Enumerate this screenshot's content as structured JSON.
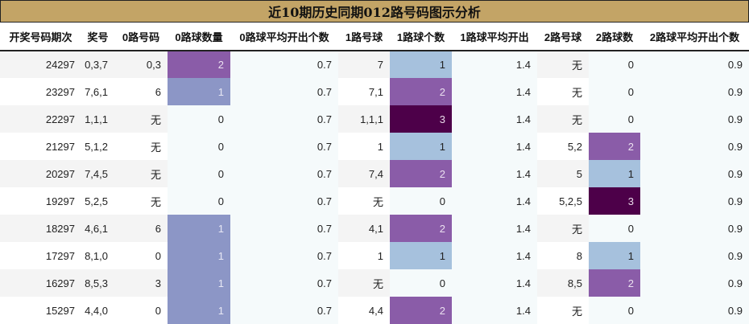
{
  "title": "近10期历史同期012路号码图示分析",
  "columns": [
    "开奖号码期次",
    "奖号",
    "0路号码",
    "0路球数量",
    "0路球平均开出个数",
    "1路号球",
    "1路球个数",
    "1路球平均开出",
    "2路号球",
    "2路球数",
    "2路球平均开出个数"
  ],
  "colors": {
    "header_bg": "#c3a466",
    "count1_col0": "#8c96c6",
    "count1": "#a6c1dd",
    "count2": "#8a5ca8",
    "count3": "#4d0049"
  },
  "rows": [
    {
      "issue": "24297",
      "draw": "0,3,7",
      "r0": "0,3",
      "r0n": "2",
      "r0avg": "0.7",
      "r1": "7",
      "r1n": "1",
      "r1avg": "1.4",
      "r2": "无",
      "r2n": "0",
      "r2avg": "0.9"
    },
    {
      "issue": "23297",
      "draw": "7,6,1",
      "r0": "6",
      "r0n": "1",
      "r0avg": "0.7",
      "r1": "7,1",
      "r1n": "2",
      "r1avg": "1.4",
      "r2": "无",
      "r2n": "0",
      "r2avg": "0.9"
    },
    {
      "issue": "22297",
      "draw": "1,1,1",
      "r0": "无",
      "r0n": "0",
      "r0avg": "0.7",
      "r1": "1,1,1",
      "r1n": "3",
      "r1avg": "1.4",
      "r2": "无",
      "r2n": "0",
      "r2avg": "0.9"
    },
    {
      "issue": "21297",
      "draw": "5,1,2",
      "r0": "无",
      "r0n": "0",
      "r0avg": "0.7",
      "r1": "1",
      "r1n": "1",
      "r1avg": "1.4",
      "r2": "5,2",
      "r2n": "2",
      "r2avg": "0.9"
    },
    {
      "issue": "20297",
      "draw": "7,4,5",
      "r0": "无",
      "r0n": "0",
      "r0avg": "0.7",
      "r1": "7,4",
      "r1n": "2",
      "r1avg": "1.4",
      "r2": "5",
      "r2n": "1",
      "r2avg": "0.9"
    },
    {
      "issue": "19297",
      "draw": "5,2,5",
      "r0": "无",
      "r0n": "0",
      "r0avg": "0.7",
      "r1": "无",
      "r1n": "0",
      "r1avg": "1.4",
      "r2": "5,2,5",
      "r2n": "3",
      "r2avg": "0.9"
    },
    {
      "issue": "18297",
      "draw": "4,6,1",
      "r0": "6",
      "r0n": "1",
      "r0avg": "0.7",
      "r1": "4,1",
      "r1n": "2",
      "r1avg": "1.4",
      "r2": "无",
      "r2n": "0",
      "r2avg": "0.9"
    },
    {
      "issue": "17297",
      "draw": "8,1,0",
      "r0": "0",
      "r0n": "1",
      "r0avg": "0.7",
      "r1": "1",
      "r1n": "1",
      "r1avg": "1.4",
      "r2": "8",
      "r2n": "1",
      "r2avg": "0.9"
    },
    {
      "issue": "16297",
      "draw": "8,5,3",
      "r0": "3",
      "r0n": "1",
      "r0avg": "0.7",
      "r1": "无",
      "r1n": "0",
      "r1avg": "1.4",
      "r2": "8,5",
      "r2n": "2",
      "r2avg": "0.9"
    },
    {
      "issue": "15297",
      "draw": "4,4,0",
      "r0": "0",
      "r0n": "1",
      "r0avg": "0.7",
      "r1": "4,4",
      "r1n": "2",
      "r1avg": "1.4",
      "r2": "无",
      "r2n": "0",
      "r2avg": "0.9"
    }
  ]
}
